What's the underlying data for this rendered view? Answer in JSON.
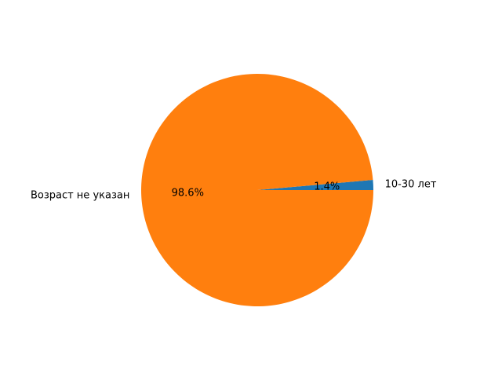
{
  "chart_data": {
    "type": "pie",
    "title": "",
    "start_angle_deg": 0,
    "direction": "counterclockwise",
    "slices": [
      {
        "label": "10-30 лет",
        "value": 1.4,
        "pct_label": "1.4%",
        "color": "#1f77b4"
      },
      {
        "label": "Возраст не указан",
        "value": 98.6,
        "pct_label": "98.6%",
        "color": "#ff7f0e"
      }
    ]
  }
}
